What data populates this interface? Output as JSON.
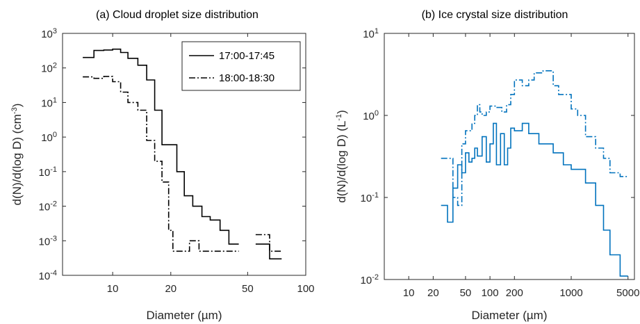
{
  "chart_data": [
    {
      "type": "line",
      "title": "(a) Cloud droplet size distribution",
      "xlabel": "Diameter (µm)",
      "ylabel_main": "d(N)/d(log D) (cm",
      "ylabel_sup": "-3",
      "ylabel_close": ")",
      "xscale": "log",
      "yscale": "log",
      "xlim": [
        5.5,
        100
      ],
      "ylim": [
        0.0001,
        1000
      ],
      "xticks": [
        10,
        20,
        50,
        100
      ],
      "xtick_labels": [
        "10",
        "20",
        "50",
        "100"
      ],
      "yticks": [
        0.0001,
        0.001,
        0.01,
        0.1,
        1,
        10,
        100,
        1000
      ],
      "ytick_base": "10",
      "ytick_exps": [
        "-4",
        "-3",
        "-2",
        "-1",
        "0",
        "1",
        "2",
        "3"
      ],
      "legend_placement": "top-right",
      "series": [
        {
          "name": "17:00-17:45",
          "style": "solid",
          "color": "#000000",
          "steps": [
            [
              7,
              8,
              200
            ],
            [
              8,
              9,
              320
            ],
            [
              9,
              10,
              330
            ],
            [
              10,
              11,
              350
            ],
            [
              11,
              12,
              280
            ],
            [
              12,
              13.5,
              190
            ],
            [
              13.5,
              15,
              120
            ],
            [
              15,
              16.5,
              45
            ],
            [
              16.5,
              18,
              6
            ],
            [
              18,
              19.5,
              0.6
            ],
            [
              19.5,
              21.5,
              0.6
            ],
            [
              21.5,
              23.5,
              0.1
            ],
            [
              23.5,
              26,
              0.02
            ],
            [
              26,
              29,
              0.01
            ],
            [
              29,
              32,
              0.005
            ],
            [
              32,
              36,
              0.004
            ],
            [
              36,
              40,
              0.002
            ],
            [
              40,
              45,
              0.0008
            ]
          ]
        },
        {
          "name": "18:00-18:30",
          "style": "dashdot",
          "color": "#000000",
          "steps": [
            [
              7,
              8,
              55
            ],
            [
              8,
              9,
              50
            ],
            [
              9,
              10,
              57
            ],
            [
              10,
              11,
              40
            ],
            [
              11,
              12,
              20
            ],
            [
              12,
              13.5,
              10
            ],
            [
              13.5,
              15,
              6
            ],
            [
              15,
              16.5,
              0.8
            ],
            [
              16.5,
              18,
              0.2
            ],
            [
              18,
              19.5,
              0.05
            ],
            [
              19.5,
              20.5,
              0.002
            ],
            [
              20.5,
              22,
              0.0005
            ],
            [
              22,
              25,
              0.0005
            ],
            [
              25,
              28,
              0.001
            ],
            [
              28,
              32,
              0.0005
            ],
            [
              32,
              36,
              0.0005
            ],
            [
              36,
              40,
              0.0005
            ],
            [
              40,
              45,
              0.0005
            ],
            [
              55,
              65,
              0.0015
            ],
            [
              65,
              70,
              0.0005
            ],
            [
              70,
              75,
              0.0005
            ]
          ]
        },
        {
          "name": "",
          "style": "solid",
          "color": "#000000",
          "steps": [
            [
              55,
              65,
              0.0008
            ],
            [
              65,
              70,
              0.0003
            ],
            [
              70,
              75,
              0.0003
            ]
          ]
        }
      ]
    },
    {
      "type": "line",
      "title": "(b) Ice crystal size distribution",
      "xlabel": "Diameter (µm)",
      "ylabel_main": "d(N)/d(log D) (L",
      "ylabel_sup": "-1",
      "ylabel_close": ")",
      "xscale": "log",
      "yscale": "log",
      "xlim": [
        5,
        6000
      ],
      "ylim": [
        0.01,
        10
      ],
      "xticks": [
        10,
        20,
        50,
        100,
        200,
        1000,
        5000
      ],
      "xtick_labels": [
        "10",
        "20",
        "50",
        "100",
        "200",
        "1000",
        "5000"
      ],
      "yticks": [
        0.01,
        0.1,
        1,
        10
      ],
      "ytick_base": "10",
      "ytick_exps": [
        "-2",
        "-1",
        "0",
        "1"
      ],
      "series": [
        {
          "name": "",
          "style": "solid",
          "color": "#0072BD",
          "steps": [
            [
              25,
              30,
              0.08
            ],
            [
              30,
              35,
              0.05
            ],
            [
              35,
              40,
              0.13
            ],
            [
              40,
              45,
              0.25
            ],
            [
              45,
              50,
              0.2
            ],
            [
              50,
              55,
              0.35
            ],
            [
              55,
              60,
              0.27
            ],
            [
              60,
              65,
              0.3
            ],
            [
              65,
              70,
              0.4
            ],
            [
              70,
              80,
              0.32
            ],
            [
              80,
              90,
              0.55
            ],
            [
              90,
              100,
              0.27
            ],
            [
              100,
              110,
              0.45
            ],
            [
              110,
              120,
              0.8
            ],
            [
              120,
              135,
              0.25
            ],
            [
              135,
              150,
              0.6
            ],
            [
              150,
              165,
              0.25
            ],
            [
              165,
              180,
              0.4
            ],
            [
              180,
              200,
              0.7
            ],
            [
              200,
              250,
              0.65
            ],
            [
              250,
              300,
              0.8
            ],
            [
              300,
              400,
              0.6
            ],
            [
              400,
              600,
              0.45
            ],
            [
              600,
              800,
              0.35
            ],
            [
              800,
              1000,
              0.25
            ],
            [
              1000,
              1500,
              0.22
            ],
            [
              1500,
              2000,
              0.15
            ],
            [
              2000,
              2500,
              0.08
            ],
            [
              2500,
              3000,
              0.04
            ],
            [
              3000,
              3500,
              0.02
            ],
            [
              3500,
              4000,
              0.02
            ],
            [
              4000,
              5000,
              0.011
            ]
          ]
        },
        {
          "name": "",
          "style": "dashdot",
          "color": "#0072BD",
          "steps": [
            [
              25,
              30,
              0.3
            ],
            [
              30,
              35,
              0.3
            ],
            [
              35,
              40,
              0.1
            ],
            [
              40,
              45,
              0.08
            ],
            [
              45,
              50,
              0.45
            ],
            [
              50,
              55,
              0.65
            ],
            [
              55,
              60,
              0.65
            ],
            [
              60,
              65,
              0.8
            ],
            [
              65,
              70,
              1.0
            ],
            [
              70,
              75,
              1.35
            ],
            [
              75,
              80,
              1.1
            ],
            [
              80,
              90,
              1.0
            ],
            [
              90,
              100,
              1.1
            ],
            [
              100,
              120,
              1.3
            ],
            [
              120,
              140,
              1.25
            ],
            [
              140,
              160,
              1.1
            ],
            [
              160,
              180,
              1.35
            ],
            [
              180,
              200,
              1.8
            ],
            [
              200,
              250,
              2.7
            ],
            [
              250,
              300,
              2.3
            ],
            [
              300,
              350,
              2.7
            ],
            [
              350,
              450,
              3.3
            ],
            [
              450,
              600,
              3.5
            ],
            [
              600,
              700,
              2.3
            ],
            [
              700,
              1000,
              1.8
            ],
            [
              1000,
              1200,
              1.2
            ],
            [
              1200,
              1500,
              1.0
            ],
            [
              1500,
              2000,
              0.55
            ],
            [
              2000,
              2500,
              0.4
            ],
            [
              2500,
              3000,
              0.3
            ],
            [
              3000,
              4000,
              0.2
            ],
            [
              4000,
              5000,
              0.18
            ]
          ]
        }
      ]
    }
  ]
}
